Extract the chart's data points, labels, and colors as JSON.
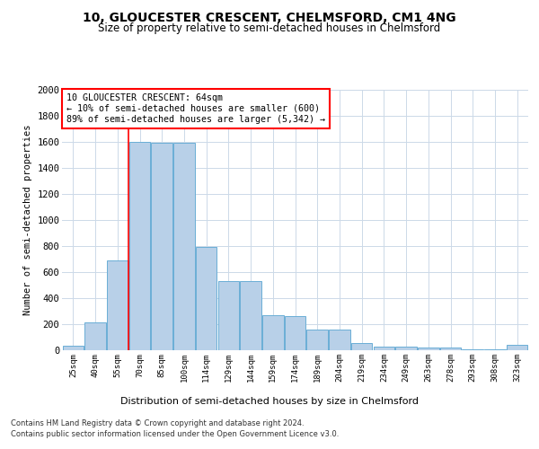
{
  "title1": "10, GLOUCESTER CRESCENT, CHELMSFORD, CM1 4NG",
  "title2": "Size of property relative to semi-detached houses in Chelmsford",
  "xlabel": "Distribution of semi-detached houses by size in Chelmsford",
  "ylabel": "Number of semi-detached properties",
  "categories": [
    "25sqm",
    "40sqm",
    "55sqm",
    "70sqm",
    "85sqm",
    "100sqm",
    "114sqm",
    "129sqm",
    "144sqm",
    "159sqm",
    "174sqm",
    "189sqm",
    "204sqm",
    "219sqm",
    "234sqm",
    "249sqm",
    "263sqm",
    "278sqm",
    "293sqm",
    "308sqm",
    "323sqm"
  ],
  "values": [
    35,
    215,
    690,
    1600,
    1590,
    1590,
    790,
    530,
    530,
    270,
    265,
    160,
    160,
    55,
    30,
    30,
    20,
    18,
    5,
    5,
    40
  ],
  "bar_color": "#b8d0e8",
  "bar_edge_color": "#6aaed6",
  "annotation_title": "10 GLOUCESTER CRESCENT: 64sqm",
  "annotation_line1": "← 10% of semi-detached houses are smaller (600)",
  "annotation_line2": "89% of semi-detached houses are larger (5,342) →",
  "redline_index": 2.5,
  "ylim": [
    0,
    2000
  ],
  "yticks": [
    0,
    200,
    400,
    600,
    800,
    1000,
    1200,
    1400,
    1600,
    1800,
    2000
  ],
  "footer1": "Contains HM Land Registry data © Crown copyright and database right 2024.",
  "footer2": "Contains public sector information licensed under the Open Government Licence v3.0.",
  "bg_color": "#ffffff",
  "grid_color": "#ccd9e8"
}
